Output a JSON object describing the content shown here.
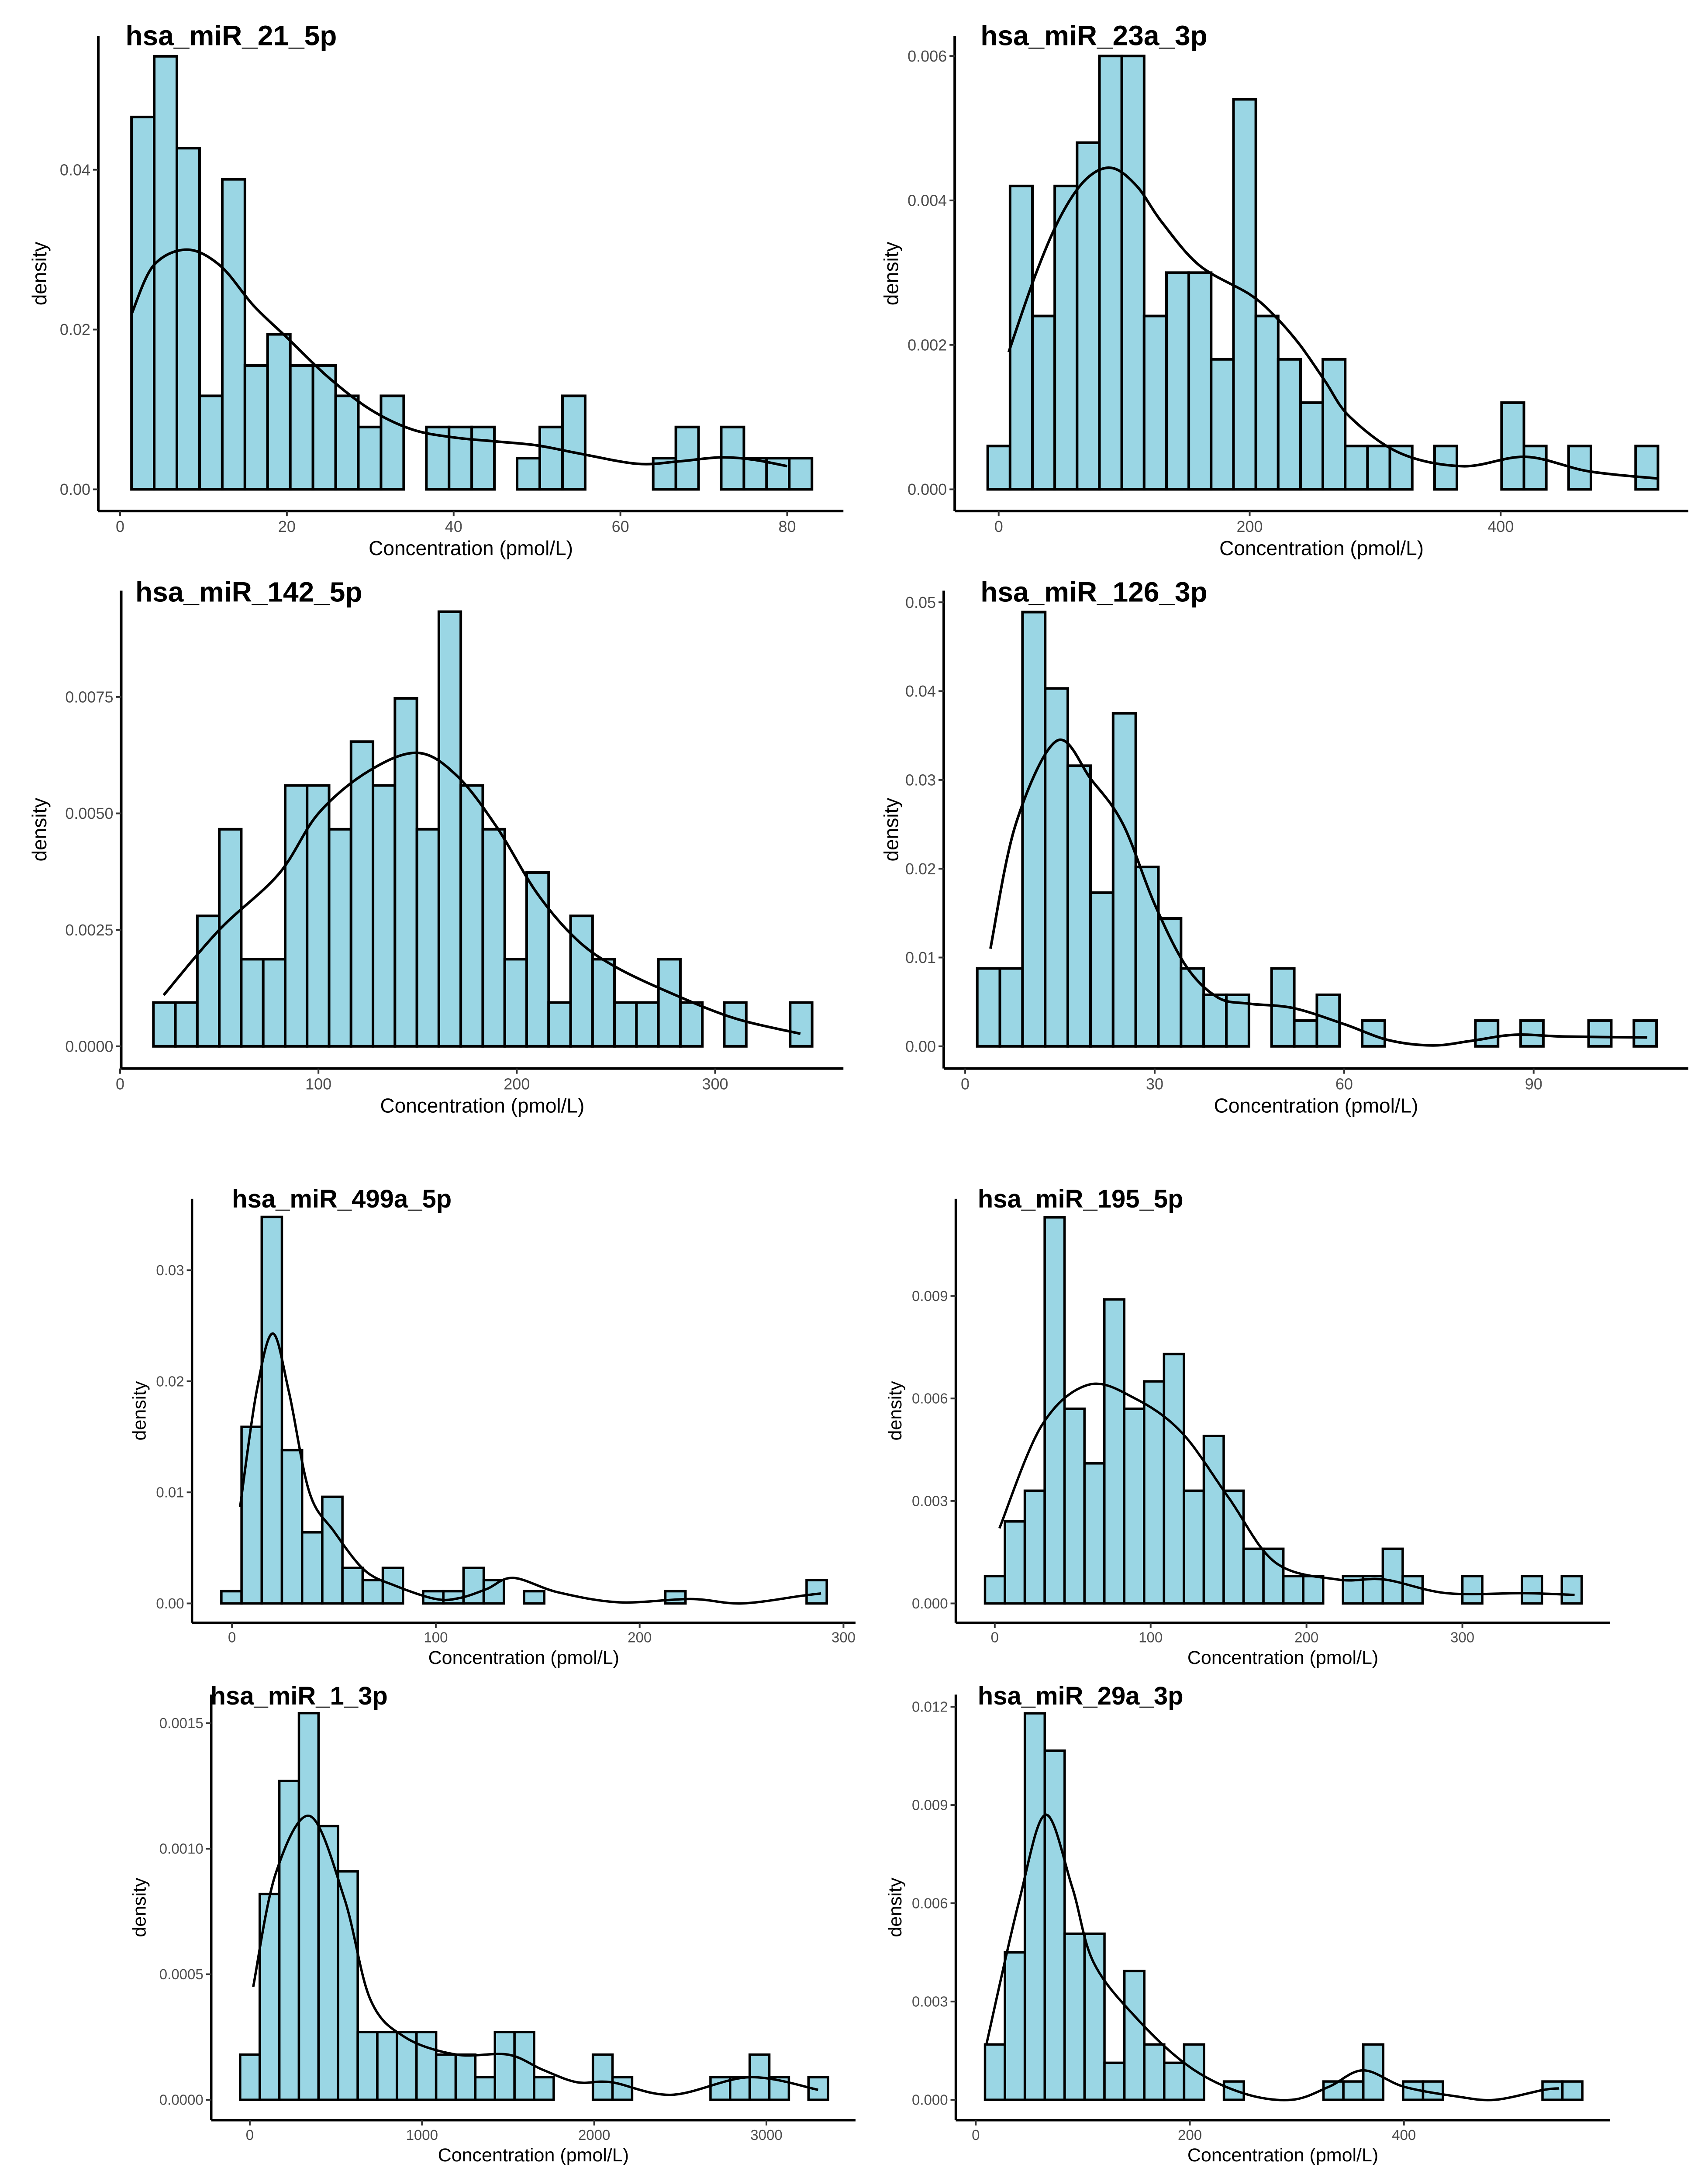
{
  "style": {
    "bar_fill": "#9AD6E4",
    "bar_stroke": "#000000",
    "curve": "#000000",
    "axis": "#000000",
    "tick_text": "#4d4d4d"
  },
  "chart_data": [
    {
      "type": "histogram",
      "title": "hsa_miR_21_5p",
      "xlabel": "Concentration (pmol/L)",
      "ylabel": "density",
      "bin_start": 1.37,
      "bin_width": 2.72,
      "values": [
        0.0466,
        0.0542,
        0.0427,
        0.0117,
        0.0388,
        0.0155,
        0.0194,
        0.0155,
        0.0155,
        0.0117,
        0.0078,
        0.0117,
        0,
        0.0078,
        0.0078,
        0.0078,
        0,
        0.0039,
        0.0078,
        0.0117,
        0,
        0,
        0,
        0.0039,
        0.0078,
        0,
        0.0078,
        0.0039,
        0.0039,
        0.0039
      ],
      "density_curve": {
        "x": [
          1.4,
          4,
          8,
          12,
          16,
          20,
          25,
          30,
          35,
          40,
          45,
          50,
          55,
          62,
          67,
          72,
          76,
          80
        ],
        "y": [
          0.022,
          0.028,
          0.03,
          0.028,
          0.023,
          0.019,
          0.014,
          0.01,
          0.0075,
          0.0065,
          0.006,
          0.0055,
          0.0045,
          0.0032,
          0.0035,
          0.004,
          0.0037,
          0.0029
        ]
      },
      "x_ticks": [
        {
          "v": 0,
          "label": "0"
        },
        {
          "v": 20,
          "label": "20"
        },
        {
          "v": 40,
          "label": "40"
        },
        {
          "v": 60,
          "label": "60"
        },
        {
          "v": 80,
          "label": "80"
        }
      ],
      "y_ticks": [
        {
          "v": 0,
          "label": "0.00"
        },
        {
          "v": 0.02,
          "label": "0.02"
        },
        {
          "v": 0.04,
          "label": "0.04"
        }
      ]
    },
    {
      "type": "histogram",
      "title": "hsa_miR_23a_3p",
      "xlabel": "Concentration (pmol/L)",
      "ylabel": "density",
      "bin_start": -8.7,
      "bin_width": 17.8,
      "values": [
        0.0006,
        0.0042,
        0.0024,
        0.0042,
        0.0048,
        0.006,
        0.006,
        0.0024,
        0.003,
        0.003,
        0.0018,
        0.0054,
        0.0024,
        0.0018,
        0.0012,
        0.0018,
        0.0006,
        0.0006,
        0.0006,
        0,
        0.0006,
        0,
        0,
        0.0012,
        0.0006,
        0,
        0.0006,
        0,
        0,
        0.0006
      ],
      "density_curve": {
        "x": [
          8,
          30,
          50,
          70,
          90,
          110,
          130,
          160,
          200,
          220,
          240,
          260,
          280,
          320,
          370,
          420,
          470,
          525
        ],
        "y": [
          0.0019,
          0.003,
          0.0038,
          0.0043,
          0.00445,
          0.0042,
          0.0037,
          0.0031,
          0.0027,
          0.0024,
          0.002,
          0.0015,
          0.001,
          0.0005,
          0.00032,
          0.00045,
          0.00025,
          0.00015
        ]
      },
      "x_ticks": [
        {
          "v": 0,
          "label": "0"
        },
        {
          "v": 200,
          "label": "200"
        },
        {
          "v": 400,
          "label": "400"
        }
      ],
      "y_ticks": [
        {
          "v": 0,
          "label": "0.000"
        },
        {
          "v": 0.002,
          "label": "0.002"
        },
        {
          "v": 0.004,
          "label": "0.004"
        },
        {
          "v": 0.006,
          "label": "0.006"
        }
      ]
    },
    {
      "type": "histogram",
      "title": "hsa_miR_142_5p",
      "xlabel": "Concentration (pmol/L)",
      "ylabel": "density",
      "bin_start": 16.8,
      "bin_width": 11.07,
      "values": [
        0.00094,
        0.00094,
        0.0028,
        0.00466,
        0.00187,
        0.00187,
        0.0056,
        0.0056,
        0.00466,
        0.00654,
        0.0056,
        0.00747,
        0.00466,
        0.00933,
        0.0056,
        0.00466,
        0.00187,
        0.00373,
        0.00094,
        0.0028,
        0.00187,
        0.00094,
        0.00094,
        0.00187,
        0.00094,
        0,
        0.00094,
        0,
        0,
        0.00094
      ],
      "density_curve": {
        "x": [
          22,
          50,
          80,
          100,
          125,
          150,
          170,
          190,
          210,
          230,
          250,
          280,
          310,
          343
        ],
        "y": [
          0.0011,
          0.0025,
          0.0037,
          0.005,
          0.0059,
          0.0063,
          0.0058,
          0.0047,
          0.0033,
          0.0023,
          0.0017,
          0.0011,
          0.0006,
          0.00027
        ]
      },
      "x_ticks": [
        {
          "v": 0,
          "label": "0"
        },
        {
          "v": 100,
          "label": "100"
        },
        {
          "v": 200,
          "label": "200"
        },
        {
          "v": 300,
          "label": "300"
        }
      ],
      "y_ticks": [
        {
          "v": 0,
          "label": "0.0000"
        },
        {
          "v": 0.0025,
          "label": "0.0025"
        },
        {
          "v": 0.005,
          "label": "0.0050"
        },
        {
          "v": 0.0075,
          "label": "0.0075"
        }
      ]
    },
    {
      "type": "histogram",
      "title": "hsa_miR_126_3p",
      "xlabel": "Concentration (pmol/L)",
      "ylabel": "density",
      "bin_start": 1.91,
      "bin_width": 3.585,
      "values": [
        0.00877,
        0.00877,
        0.0489,
        0.0403,
        0.0316,
        0.0173,
        0.0375,
        0.0202,
        0.0144,
        0.00877,
        0.0058,
        0.0058,
        0,
        0.00877,
        0.0029,
        0.0058,
        0,
        0.0029,
        0,
        0,
        0,
        0,
        0.0029,
        0,
        0.0029,
        0,
        0,
        0.0029,
        0,
        0.0029
      ],
      "density_curve": {
        "x": [
          4,
          8,
          14.5,
          20,
          25,
          30,
          35,
          40,
          45,
          52,
          60,
          67,
          74,
          80,
          87,
          95,
          108
        ],
        "y": [
          0.011,
          0.025,
          0.0344,
          0.03,
          0.025,
          0.016,
          0.009,
          0.0055,
          0.0048,
          0.0043,
          0.0025,
          0.0007,
          0.0001,
          0.0006,
          0.0013,
          0.0011,
          0.001
        ]
      },
      "x_ticks": [
        {
          "v": 0,
          "label": "0"
        },
        {
          "v": 30,
          "label": "30"
        },
        {
          "v": 60,
          "label": "60"
        },
        {
          "v": 90,
          "label": "90"
        }
      ],
      "y_ticks": [
        {
          "v": 0,
          "label": "0.00"
        },
        {
          "v": 0.01,
          "label": "0.01"
        },
        {
          "v": 0.02,
          "label": "0.02"
        },
        {
          "v": 0.03,
          "label": "0.03"
        },
        {
          "v": 0.04,
          "label": "0.04"
        },
        {
          "v": 0.05,
          "label": "0.05"
        }
      ]
    },
    {
      "type": "histogram",
      "title": "hsa_miR_499a_5p",
      "xlabel": "Concentration (pmol/L)",
      "ylabel": "density",
      "bin_start": -5.2,
      "bin_width": 9.9,
      "values": [
        0.0011,
        0.0159,
        0.0348,
        0.0138,
        0.0064,
        0.0096,
        0.0032,
        0.0021,
        0.0032,
        0,
        0.0011,
        0.0011,
        0.0032,
        0.0021,
        0,
        0.0011,
        0,
        0,
        0,
        0,
        0,
        0,
        0.0011,
        0,
        0,
        0,
        0,
        0,
        0,
        0.0021
      ],
      "density_curve": {
        "x": [
          4,
          12,
          20,
          28,
          38,
          50,
          65,
          80,
          100,
          112,
          125,
          138,
          160,
          190,
          225,
          250,
          280,
          289
        ],
        "y": [
          0.0087,
          0.019,
          0.0243,
          0.019,
          0.01,
          0.0065,
          0.003,
          0.0016,
          0.0004,
          0.0005,
          0.0013,
          0.0023,
          0.001,
          0.0001,
          0.0004,
          0,
          0.0007,
          0.0009
        ]
      },
      "x_ticks": [
        {
          "v": 0,
          "label": "0"
        },
        {
          "v": 100,
          "label": "100"
        },
        {
          "v": 200,
          "label": "200"
        },
        {
          "v": 300,
          "label": "300"
        }
      ],
      "y_ticks": [
        {
          "v": 0,
          "label": "0.00"
        },
        {
          "v": 0.01,
          "label": "0.01"
        },
        {
          "v": 0.02,
          "label": "0.02"
        },
        {
          "v": 0.03,
          "label": "0.03"
        }
      ]
    },
    {
      "type": "histogram",
      "title": "hsa_miR_195_5p",
      "xlabel": "Concentration (pmol/L)",
      "ylabel": "density",
      "bin_start": -6.25,
      "bin_width": 12.76,
      "values": [
        0.0008,
        0.0024,
        0.0033,
        0.0113,
        0.0057,
        0.0041,
        0.0089,
        0.0057,
        0.0065,
        0.0073,
        0.0033,
        0.0049,
        0.0033,
        0.0016,
        0.0016,
        0.0008,
        0.0008,
        0,
        0.0008,
        0.0008,
        0.0016,
        0.0008,
        0,
        0,
        0.0008,
        0,
        0,
        0.0008,
        0,
        0.0008
      ],
      "density_curve": {
        "x": [
          3,
          30,
          60,
          90,
          120,
          150,
          180,
          220,
          250,
          290,
          340,
          372
        ],
        "y": [
          0.0022,
          0.0052,
          0.0064,
          0.006,
          0.005,
          0.0031,
          0.0012,
          0.0007,
          0.0007,
          0.0003,
          0.0003,
          0.00025
        ]
      },
      "x_ticks": [
        {
          "v": 0,
          "label": "0"
        },
        {
          "v": 100,
          "label": "100"
        },
        {
          "v": 200,
          "label": "200"
        },
        {
          "v": 300,
          "label": "300"
        }
      ],
      "y_ticks": [
        {
          "v": 0,
          "label": "0.000"
        },
        {
          "v": 0.003,
          "label": "0.003"
        },
        {
          "v": 0.006,
          "label": "0.006"
        },
        {
          "v": 0.009,
          "label": "0.009"
        }
      ]
    },
    {
      "type": "histogram",
      "title": "hsa_miR_1_3p",
      "xlabel": "Concentration (pmol/L)",
      "ylabel": "density",
      "bin_start": -56,
      "bin_width": 113.8,
      "values": [
        0.00018,
        0.00082,
        0.00127,
        0.00154,
        0.00109,
        0.00091,
        0.00027,
        0.00027,
        0.00027,
        0.00027,
        0.00018,
        0.00018,
        9e-05,
        0.00027,
        0.00027,
        9e-05,
        0,
        0,
        0.00018,
        9e-05,
        0,
        0,
        0,
        0,
        9e-05,
        9e-05,
        0.00018,
        9e-05,
        0,
        9e-05
      ],
      "density_curve": {
        "x": [
          20,
          150,
          350,
          550,
          700,
          900,
          1200,
          1500,
          1700,
          1900,
          2100,
          2450,
          2900,
          3300
        ],
        "y": [
          0.00045,
          0.0009,
          0.00113,
          0.0008,
          0.0004,
          0.00025,
          0.00018,
          0.00018,
          0.00012,
          7e-05,
          7e-05,
          2e-05,
          9e-05,
          4e-05
        ]
      },
      "x_ticks": [
        {
          "v": 0,
          "label": "0"
        },
        {
          "v": 1000,
          "label": "1000"
        },
        {
          "v": 2000,
          "label": "2000"
        },
        {
          "v": 3000,
          "label": "3000"
        }
      ],
      "y_ticks": [
        {
          "v": 0,
          "label": "0.0000"
        },
        {
          "v": 0.0005,
          "label": "0.0005"
        },
        {
          "v": 0.001,
          "label": "0.0010"
        },
        {
          "v": 0.0015,
          "label": "0.0015"
        }
      ]
    },
    {
      "type": "histogram",
      "title": "hsa_miR_29a_3p",
      "xlabel": "Concentration (pmol/L)",
      "ylabel": "density",
      "bin_start": 8.65,
      "bin_width": 18.6,
      "values": [
        0.00169,
        0.0045,
        0.0118,
        0.01066,
        0.00507,
        0.00507,
        0.00113,
        0.00393,
        0.00169,
        0.00113,
        0.00169,
        0,
        0.00056,
        0,
        0,
        0,
        0,
        0.00056,
        0.00056,
        0.00169,
        0,
        0.00056,
        0.00056,
        0,
        0,
        0,
        0,
        0,
        0.00056,
        0.00056
      ],
      "density_curve": {
        "x": [
          10,
          40,
          65,
          90,
          110,
          150,
          200,
          250,
          295,
          330,
          362,
          400,
          450,
          485,
          530,
          545
        ],
        "y": [
          0.0017,
          0.006,
          0.0087,
          0.0065,
          0.0042,
          0.0025,
          0.001,
          0.0002,
          0,
          0.0004,
          0.0009,
          0.0004,
          0.0001,
          0,
          0.0003,
          0.00035
        ]
      },
      "x_ticks": [
        {
          "v": 0,
          "label": "0"
        },
        {
          "v": 200,
          "label": "200"
        },
        {
          "v": 400,
          "label": "400"
        }
      ],
      "y_ticks": [
        {
          "v": 0,
          "label": "0.000"
        },
        {
          "v": 0.003,
          "label": "0.003"
        },
        {
          "v": 0.006,
          "label": "0.006"
        },
        {
          "v": 0.009,
          "label": "0.009"
        },
        {
          "v": 0.012,
          "label": "0.012"
        }
      ]
    }
  ]
}
